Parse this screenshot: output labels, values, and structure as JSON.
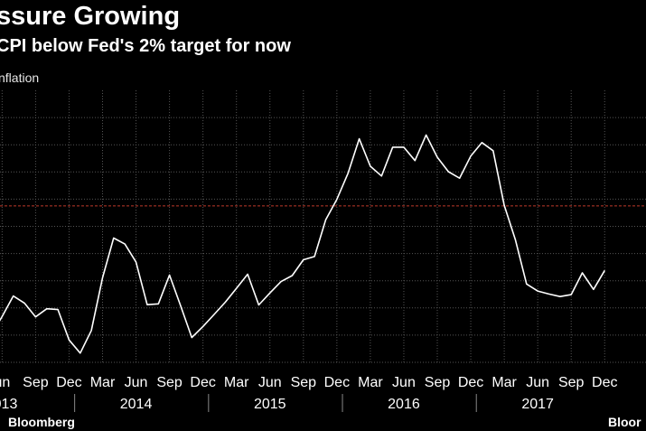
{
  "header": {
    "title": "ssure Growing",
    "subtitle": "CPI below Fed's 2% target for now",
    "ylabel": "nflation"
  },
  "footer": {
    "source_left": "Bloomberg",
    "source_right": "Bloor"
  },
  "colors": {
    "background": "#000000",
    "line": "#ffffff",
    "grid": "#555555",
    "target_line": "#c0392b",
    "text": "#ffffff"
  },
  "chart_data": {
    "type": "line",
    "title": "ssure Growing",
    "subtitle": "CPI below Fed's 2% target for now",
    "ylabel": "nflation",
    "grid": true,
    "reference_line": {
      "level": "2% target",
      "style": "dashed",
      "color": "#c0392b"
    },
    "tick_labels": [
      "un",
      "Sep",
      "Dec",
      "Mar",
      "Jun",
      "Sep",
      "Dec",
      "Mar",
      "Jun",
      "Sep",
      "Dec",
      "Mar",
      "Jun",
      "Sep",
      "Dec",
      "Mar",
      "Jun",
      "Sep",
      "Dec"
    ],
    "year_labels": [
      "013",
      "2014",
      "2015",
      "2016",
      "2017"
    ],
    "x_range": [
      "2013-06",
      "2017-12"
    ],
    "y_relative_scale": "0 = chart bottom, 1 = chart top, reference line at 0.575",
    "series": [
      {
        "x": [
          "2013-05",
          "2013-06",
          "2013-07",
          "2013-08",
          "2013-09",
          "2013-10",
          "2013-11",
          "2013-12",
          "2014-01",
          "2014-02",
          "2014-03",
          "2014-04",
          "2014-05",
          "2014-06",
          "2014-07",
          "2014-08",
          "2014-09",
          "2014-10",
          "2014-11",
          "2014-12",
          "2015-01",
          "2015-02",
          "2015-03",
          "2015-04",
          "2015-05",
          "2015-06",
          "2015-07",
          "2015-08",
          "2015-09",
          "2015-10",
          "2015-11",
          "2015-12",
          "2016-01",
          "2016-02",
          "2016-03",
          "2016-04",
          "2016-05",
          "2016-06",
          "2016-07",
          "2016-08",
          "2016-09",
          "2016-10",
          "2016-11",
          "2016-12",
          "2017-01",
          "2017-02",
          "2017-03",
          "2017-04",
          "2017-05",
          "2017-06",
          "2017-07",
          "2017-08",
          "2017-09",
          "2017-10",
          "2017-11",
          "2017-12"
        ],
        "values": [
          0.099,
          0.168,
          0.244,
          0.218,
          0.167,
          0.197,
          0.194,
          0.082,
          0.034,
          0.117,
          0.311,
          0.457,
          0.435,
          0.369,
          0.212,
          0.215,
          0.321,
          0.208,
          0.091,
          0.132,
          0.176,
          0.221,
          0.272,
          0.324,
          0.211,
          0.255,
          0.297,
          0.319,
          0.377,
          0.389,
          0.524,
          0.599,
          0.695,
          0.822,
          0.721,
          0.685,
          0.791,
          0.791,
          0.742,
          0.836,
          0.754,
          0.701,
          0.677,
          0.758,
          0.808,
          0.778,
          0.577,
          0.451,
          0.288,
          0.262,
          0.251,
          0.242,
          0.249,
          0.329,
          0.268,
          0.338
        ]
      }
    ]
  }
}
